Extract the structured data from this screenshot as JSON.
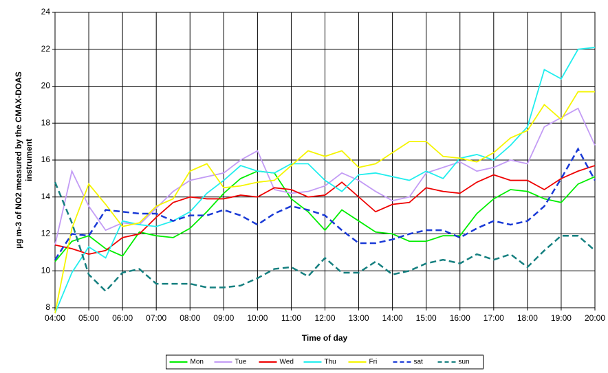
{
  "chart_data": {
    "type": "line",
    "x_label": "Time of day",
    "y_label": [
      "µg m-3 of NO2 measured by the CMAX-DOAS",
      "instrument"
    ],
    "categories": [
      "04:00",
      null,
      "05:00",
      null,
      "06:00",
      null,
      "07:00",
      null,
      "08:00",
      null,
      "09:00",
      null,
      "10:00",
      null,
      "11:00",
      null,
      "12:00",
      null,
      "13:00",
      null,
      "14:00",
      null,
      "15:00",
      null,
      "16:00",
      null,
      "17:00",
      null,
      "18:00",
      null,
      "19:00",
      null,
      "20:00"
    ],
    "ylim": [
      8,
      24
    ],
    "yticks": [
      8,
      10,
      12,
      14,
      16,
      18,
      20,
      22,
      24
    ],
    "grid": true,
    "legend": "bottom",
    "series": [
      {
        "name": "Mon",
        "color": "#00ee00",
        "line_style": "solid",
        "values": [
          10.5,
          11.6,
          11.9,
          11.2,
          10.8,
          12.1,
          11.9,
          11.8,
          12.3,
          13.2,
          14.2,
          15.0,
          15.4,
          15.3,
          13.9,
          13.2,
          12.2,
          13.3,
          12.7,
          12.1,
          12.0,
          11.6,
          11.6,
          11.9,
          11.9,
          13.1,
          13.9,
          14.4,
          14.3,
          13.9,
          13.7,
          14.7,
          15.1
        ]
      },
      {
        "name": "Tue",
        "color": "#c39cf5",
        "line_style": "solid",
        "values": [
          11.4,
          15.4,
          13.5,
          12.2,
          12.6,
          12.5,
          13.4,
          14.3,
          14.9,
          15.1,
          15.3,
          16.0,
          16.5,
          14.4,
          14.2,
          14.3,
          14.6,
          15.3,
          14.9,
          14.3,
          13.8,
          14.0,
          15.3,
          15.6,
          15.9,
          15.4,
          15.6,
          16.0,
          15.8,
          17.8,
          18.3,
          18.8,
          16.8
        ]
      },
      {
        "name": "Wed",
        "color": "#ee0000",
        "line_style": "solid",
        "values": [
          11.4,
          11.2,
          10.9,
          11.1,
          11.8,
          12.0,
          12.9,
          13.7,
          14.0,
          13.9,
          13.9,
          14.1,
          14.0,
          14.5,
          14.4,
          14.0,
          14.1,
          14.8,
          14.0,
          13.2,
          13.6,
          13.7,
          14.5,
          14.3,
          14.2,
          14.8,
          15.2,
          14.9,
          14.9,
          14.4,
          15.0,
          15.4,
          15.7
        ]
      },
      {
        "name": "Thu",
        "color": "#22eeee",
        "line_style": "solid",
        "values": [
          7.7,
          9.9,
          11.3,
          10.7,
          12.7,
          12.5,
          12.4,
          12.7,
          13.2,
          14.2,
          14.9,
          15.7,
          15.4,
          15.3,
          15.8,
          15.8,
          14.9,
          14.3,
          15.2,
          15.3,
          15.1,
          14.9,
          15.4,
          15.0,
          16.1,
          16.3,
          16.0,
          16.8,
          17.8,
          20.9,
          20.4,
          22.0,
          22.1
        ]
      },
      {
        "name": "Fri",
        "color": "#f5f500",
        "line_style": "solid",
        "values": [
          7.7,
          12.3,
          14.7,
          13.6,
          12.4,
          12.6,
          13.5,
          13.9,
          15.4,
          15.8,
          14.5,
          14.6,
          14.8,
          14.9,
          15.7,
          16.5,
          16.2,
          16.5,
          15.6,
          15.8,
          16.4,
          17.0,
          17.0,
          16.2,
          16.1,
          15.9,
          16.4,
          17.2,
          17.6,
          19.0,
          18.2,
          19.7,
          19.7
        ]
      },
      {
        "name": "sat",
        "color": "#1a3ad6",
        "line_style": "dashed",
        "values": [
          10.6,
          12.0,
          11.9,
          13.3,
          13.2,
          13.1,
          13.1,
          12.7,
          13.0,
          13.0,
          13.3,
          13.0,
          12.5,
          13.1,
          13.5,
          13.3,
          13.0,
          12.2,
          11.5,
          11.5,
          11.7,
          12.0,
          12.2,
          12.2,
          11.8,
          12.3,
          12.7,
          12.5,
          12.7,
          13.5,
          15.0,
          16.6,
          14.9
        ]
      },
      {
        "name": "sun",
        "color": "#168080",
        "line_style": "dashed",
        "values": [
          14.8,
          12.6,
          9.8,
          8.9,
          9.9,
          10.1,
          9.3,
          9.3,
          9.3,
          9.1,
          9.1,
          9.2,
          9.6,
          10.1,
          10.2,
          9.7,
          10.7,
          9.9,
          9.9,
          10.5,
          9.8,
          10.0,
          10.4,
          10.6,
          10.4,
          10.9,
          10.6,
          10.9,
          10.2,
          11.1,
          11.9,
          11.9,
          11.1
        ]
      }
    ]
  }
}
